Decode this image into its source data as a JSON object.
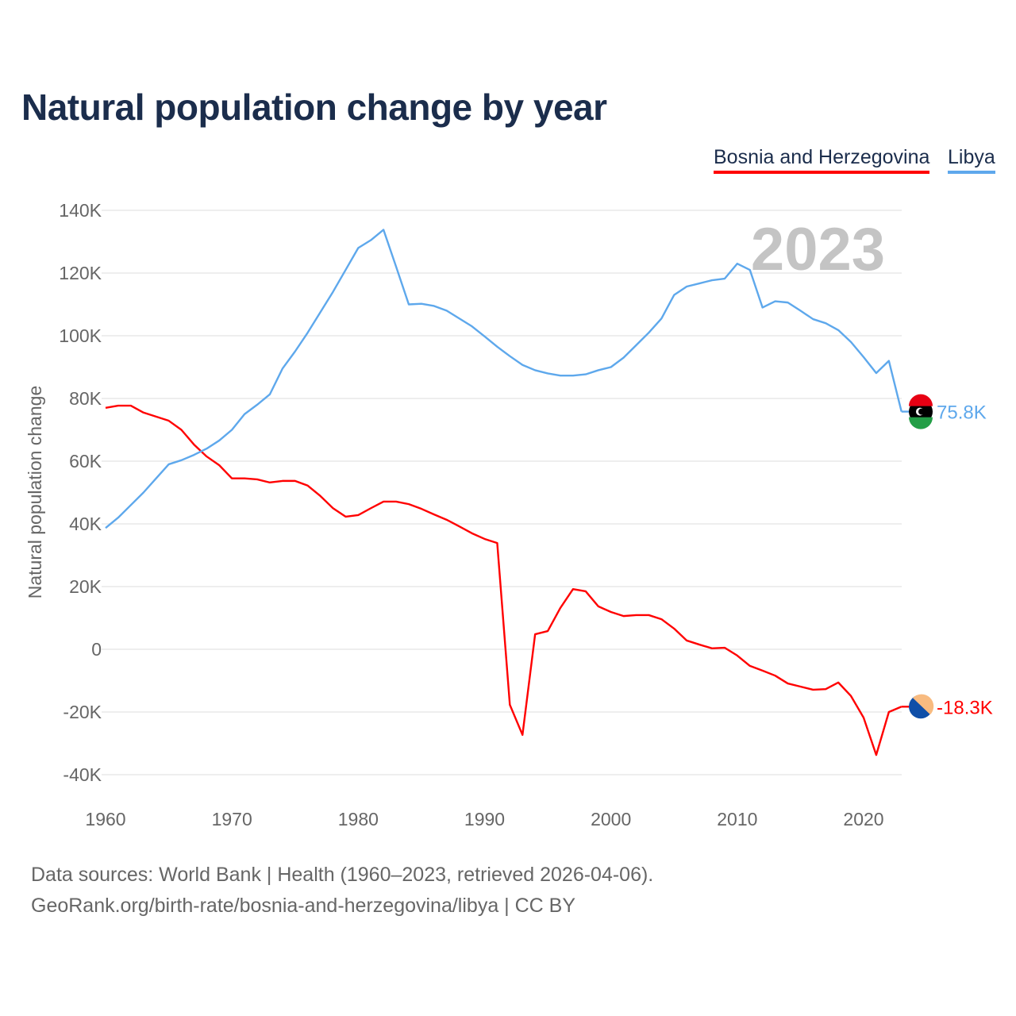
{
  "title": "Natural population change by year",
  "year_watermark": "2023",
  "source_line1": "Data sources: World Bank | Health (1960–2023, retrieved 2026-04-06).",
  "source_line2": "GeoRank.org/birth-rate/bosnia-and-herzegovina/libya | CC BY",
  "chart_data": {
    "type": "line",
    "title": "Natural population change by year",
    "xlabel": "",
    "ylabel": "Natural population change",
    "xlim": [
      1960,
      2023
    ],
    "ylim": [
      -40000,
      140000
    ],
    "yticks": [
      -40000,
      -20000,
      0,
      20000,
      40000,
      60000,
      80000,
      100000,
      120000,
      140000
    ],
    "ytick_labels": [
      "-40K",
      "-20K",
      "0",
      "20K",
      "40K",
      "60K",
      "80K",
      "100K",
      "120K",
      "140K"
    ],
    "xticks": [
      1960,
      1970,
      1980,
      1990,
      2000,
      2010,
      2020
    ],
    "xtick_labels": [
      "1960",
      "1970",
      "1980",
      "1990",
      "2000",
      "2010",
      "2020"
    ],
    "grid": true,
    "legend_position": "top-right",
    "x_start": 1960,
    "series": [
      {
        "name": "Bosnia and Herzegovina",
        "color": "#ff0000",
        "end_label": "-18.3K",
        "flag_icon": "bosnia-flag-icon",
        "values": [
          77.0,
          77.7,
          77.7,
          75.5,
          74.2,
          72.9,
          70.0,
          65.3,
          61.5,
          58.7,
          54.5,
          54.5,
          54.2,
          53.2,
          53.7,
          53.7,
          52.2,
          48.9,
          45.0,
          42.3,
          42.8,
          45.0,
          47.1,
          47.1,
          46.3,
          44.8,
          43.0,
          41.3,
          39.2,
          37.0,
          35.2,
          33.9,
          -17.7,
          -27.3,
          4.8,
          5.8,
          13.2,
          19.2,
          18.5,
          13.7,
          11.9,
          10.6,
          10.9,
          10.9,
          9.6,
          6.6,
          2.8,
          1.5,
          0.3,
          0.5,
          -2.0,
          -5.3,
          -6.8,
          -8.4,
          -10.9,
          -11.9,
          -12.9,
          -12.7,
          -10.6,
          -14.9,
          -21.8,
          -33.7,
          -20.0,
          -18.3
        ],
        "value_unit": "thousands"
      },
      {
        "name": "Libya",
        "color": "#5ea8ec",
        "end_label": "75.8K",
        "flag_icon": "libya-flag-icon",
        "values": [
          38.7,
          42.0,
          46.0,
          50.0,
          54.5,
          59.0,
          60.3,
          62.0,
          64.0,
          66.6,
          70.0,
          75.0,
          78.0,
          81.3,
          89.5,
          95.0,
          101.0,
          107.5,
          114.0,
          121.0,
          128.0,
          130.5,
          133.8,
          122.0,
          110.0,
          110.2,
          109.5,
          108.0,
          105.5,
          103.0,
          99.8,
          96.5,
          93.5,
          90.7,
          89.0,
          88.0,
          87.3,
          87.3,
          87.7,
          89.0,
          90.0,
          93.0,
          97.0,
          101.0,
          105.5,
          113.0,
          115.7,
          116.7,
          117.7,
          118.2,
          123.0,
          121.0,
          109.0,
          111.0,
          110.6,
          108.0,
          105.3,
          104.0,
          101.8,
          98.0,
          93.2,
          88.1,
          92.0,
          75.8
        ],
        "value_unit": "thousands"
      }
    ]
  }
}
